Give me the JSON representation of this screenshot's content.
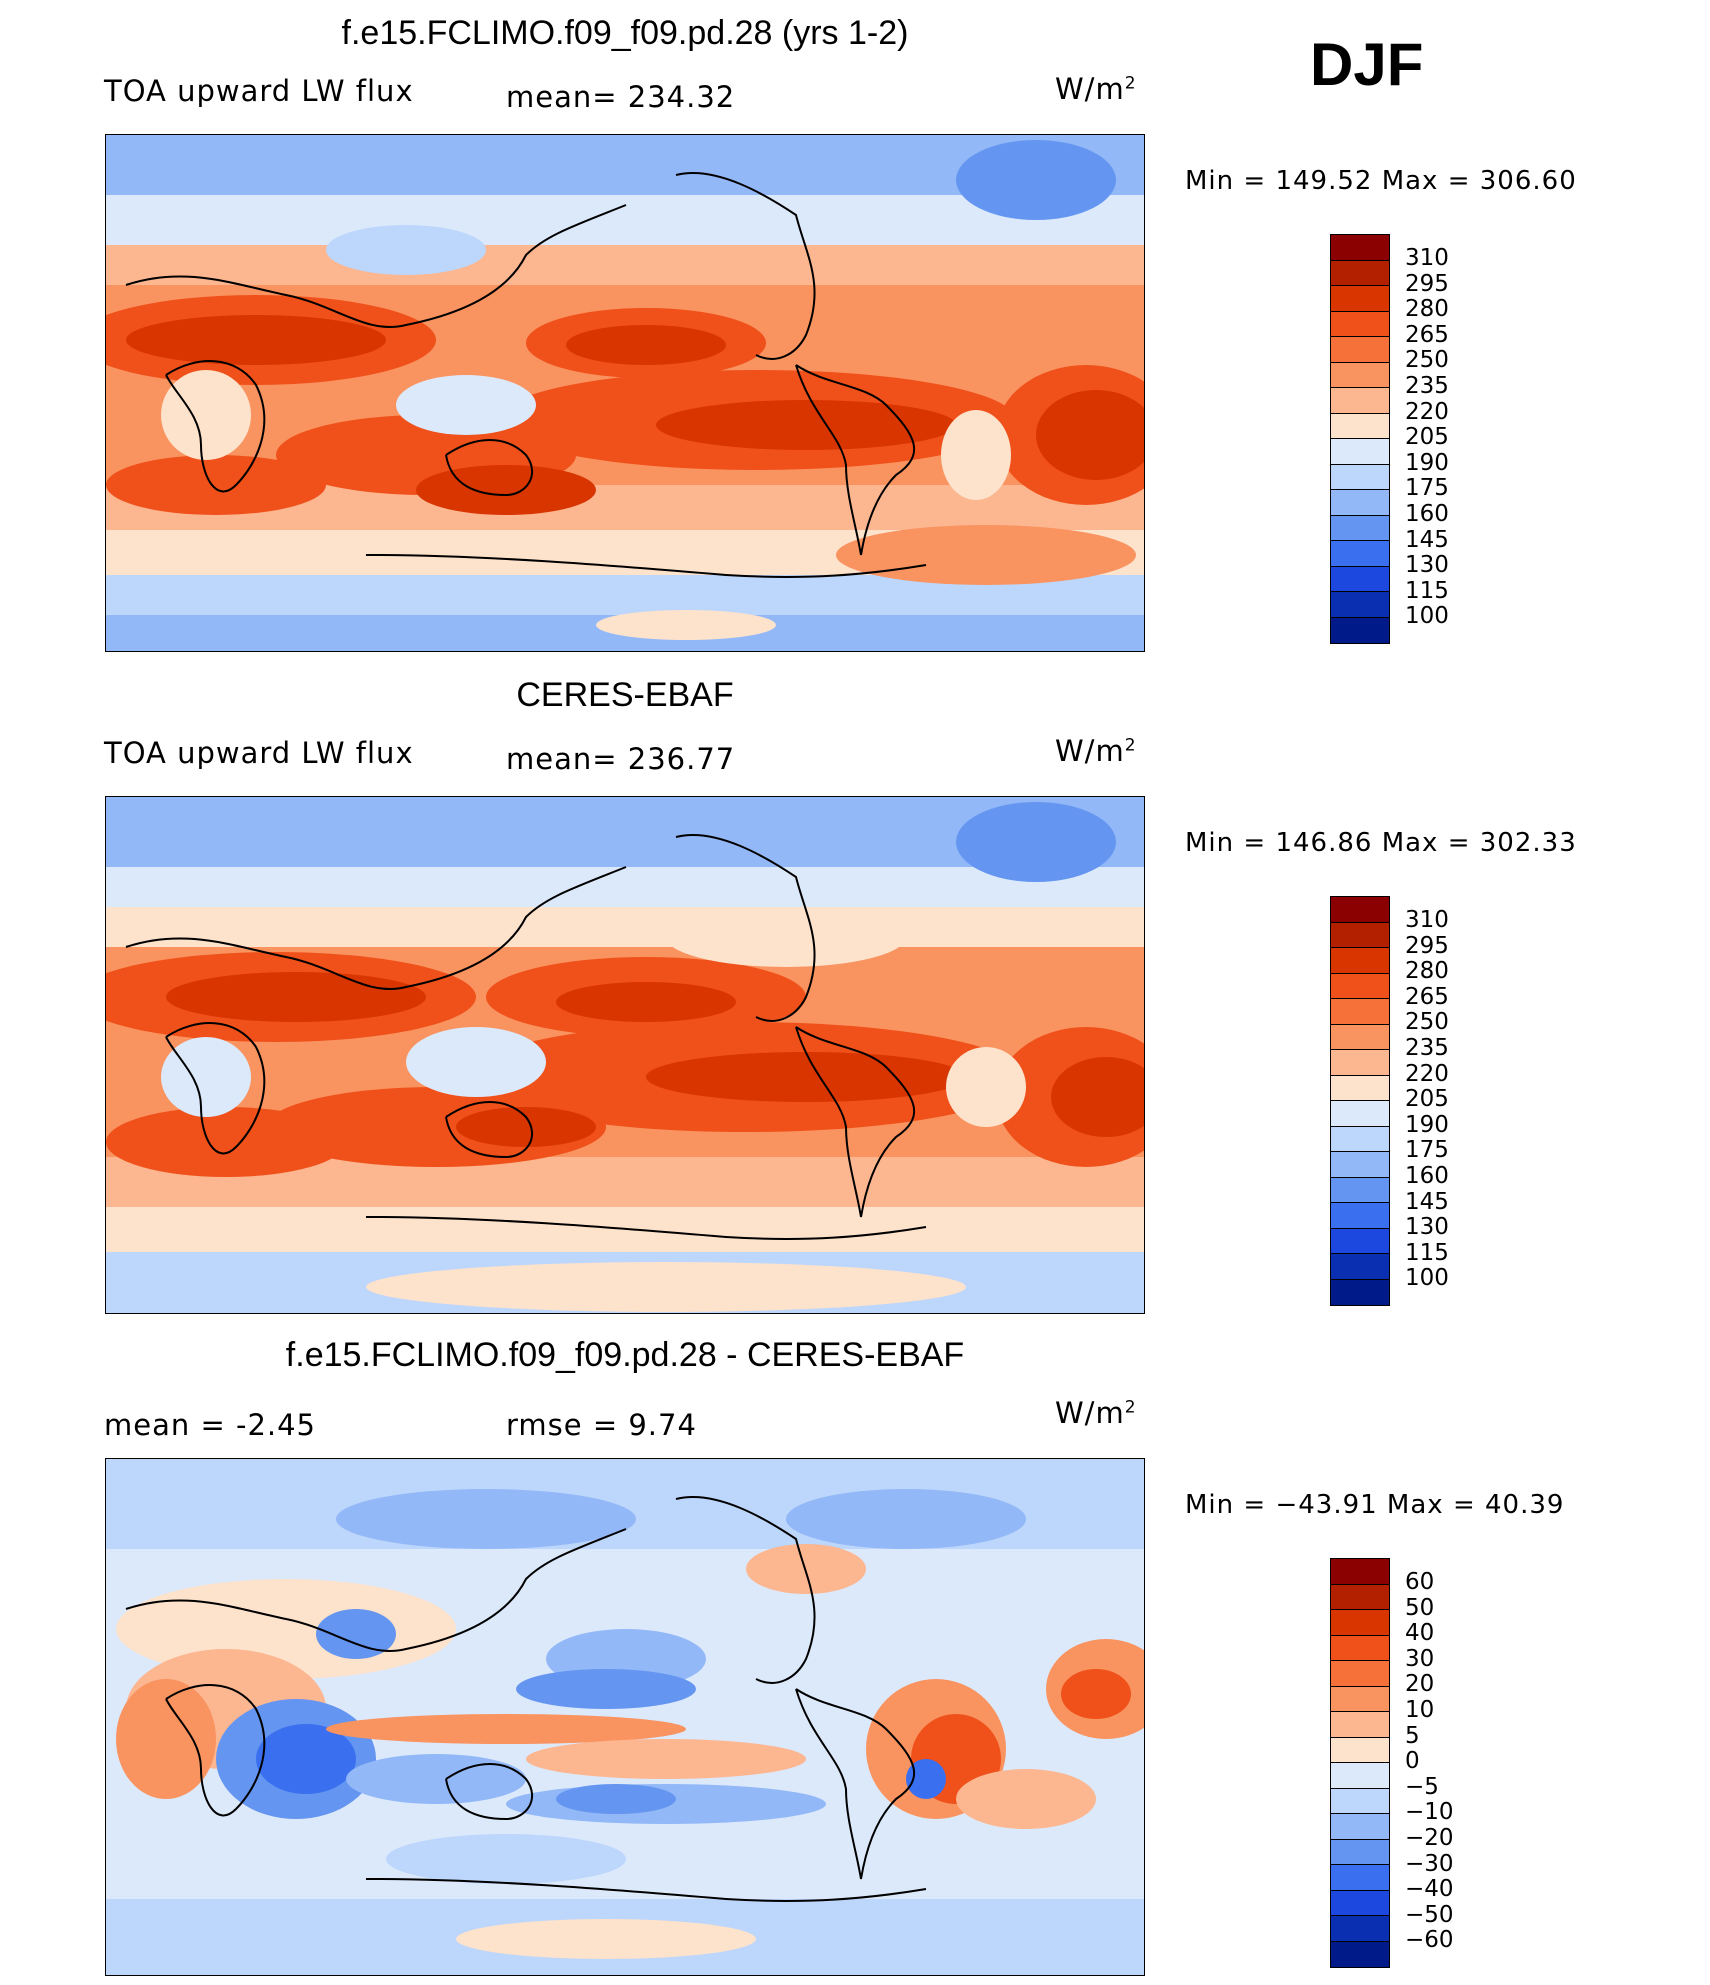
{
  "season": "DJF",
  "panels": [
    {
      "title": "f.e15.FCLIMO.f09_f09.pd.28 (yrs 1-2)",
      "left_label": "TOA upward LW flux",
      "center_label": "mean= 234.32",
      "units": "W/m",
      "units_sup": "2",
      "minmax": "Min  =  149.52  Max  =  306.60",
      "kind": "model"
    },
    {
      "title": "CERES-EBAF",
      "left_label": "TOA upward LW flux",
      "center_label": "mean= 236.77",
      "units": "W/m",
      "units_sup": "2",
      "minmax": "Min  =  146.86  Max  =  302.33",
      "kind": "obs"
    },
    {
      "title": "f.e15.FCLIMO.f09_f09.pd.28 - CERES-EBAF",
      "left_label": "mean =    -2.45",
      "center_label": "rmse =     9.74",
      "units": "W/m",
      "units_sup": "2",
      "minmax": "Min  = −43.91  Max  =   40.39",
      "kind": "diff"
    }
  ],
  "colorbar_flux": {
    "labels": [
      "310",
      "295",
      "280",
      "265",
      "250",
      "235",
      "220",
      "205",
      "190",
      "175",
      "160",
      "145",
      "130",
      "115",
      "100"
    ],
    "colors": [
      "#8b0000",
      "#b22000",
      "#d83500",
      "#f0501a",
      "#f6703a",
      "#f9935f",
      "#fcb690",
      "#fde2cc",
      "#dce9fb",
      "#bdd6fb",
      "#93b8f7",
      "#6495f0",
      "#3a6ff0",
      "#1c48e0",
      "#0a2fb0",
      "#001a8a"
    ]
  },
  "colorbar_diff": {
    "labels": [
      "60",
      "50",
      "40",
      "30",
      "20",
      "10",
      "5",
      "0",
      "−5",
      "−10",
      "−20",
      "−30",
      "−40",
      "−50",
      "−60"
    ],
    "colors": [
      "#8b0000",
      "#b22000",
      "#d83500",
      "#f0501a",
      "#f6703a",
      "#f9935f",
      "#fcb690",
      "#fde2cc",
      "#dce9fb",
      "#bdd6fb",
      "#93b8f7",
      "#6495f0",
      "#3a6ff0",
      "#1c48e0",
      "#0a2fb0",
      "#001a8a"
    ]
  }
}
